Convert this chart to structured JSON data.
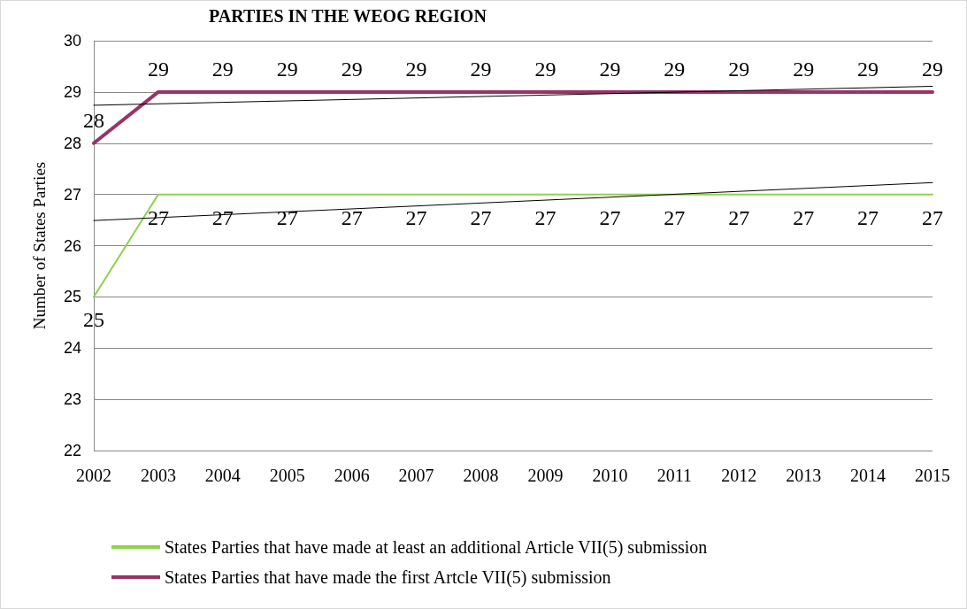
{
  "chart_data": {
    "type": "line",
    "title": "PARTIES IN THE WEOG REGION",
    "ylabel": "Number of States Parties",
    "categories": [
      "2002",
      "2003",
      "2004",
      "2005",
      "2006",
      "2007",
      "2008",
      "2009",
      "2010",
      "2011",
      "2012",
      "2013",
      "2014",
      "2015"
    ],
    "series": [
      {
        "name": "States Parties that have made at least an additional Article VII(5) submission",
        "color": "#92d050",
        "values": [
          25,
          27,
          27,
          27,
          27,
          27,
          27,
          27,
          27,
          27,
          27,
          27,
          27,
          27
        ],
        "value_labels": [
          "25",
          "27",
          "27",
          "27",
          "27",
          "27",
          "27",
          "27",
          "27",
          "27",
          "27",
          "27",
          "27",
          "27"
        ]
      },
      {
        "name": "States Parties that have made the first Artcle VII(5) submission",
        "color": "#993366",
        "values": [
          28,
          29,
          29,
          29,
          29,
          29,
          29,
          29,
          29,
          29,
          29,
          29,
          29,
          29
        ],
        "value_labels": [
          "28",
          "29",
          "29",
          "29",
          "29",
          "29",
          "29",
          "29",
          "29",
          "29",
          "29",
          "29",
          "29",
          "29"
        ]
      },
      {
        "type": "line",
        "color": "#000000",
        "values": [
          26.49,
          null,
          null,
          null,
          null,
          null,
          null,
          null,
          null,
          null,
          null,
          null,
          null,
          27.23
        ]
      },
      {
        "type": "line",
        "color": "#000000",
        "values": [
          28.74,
          null,
          null,
          null,
          null,
          null,
          null,
          null,
          null,
          null,
          null,
          null,
          null,
          29.11
        ]
      }
    ],
    "ylim": [
      22,
      30
    ],
    "yticks": [
      22,
      23,
      24,
      25,
      26,
      27,
      28,
      29,
      30
    ],
    "grid": "y",
    "legend": "bottom",
    "line_style": "solid"
  }
}
